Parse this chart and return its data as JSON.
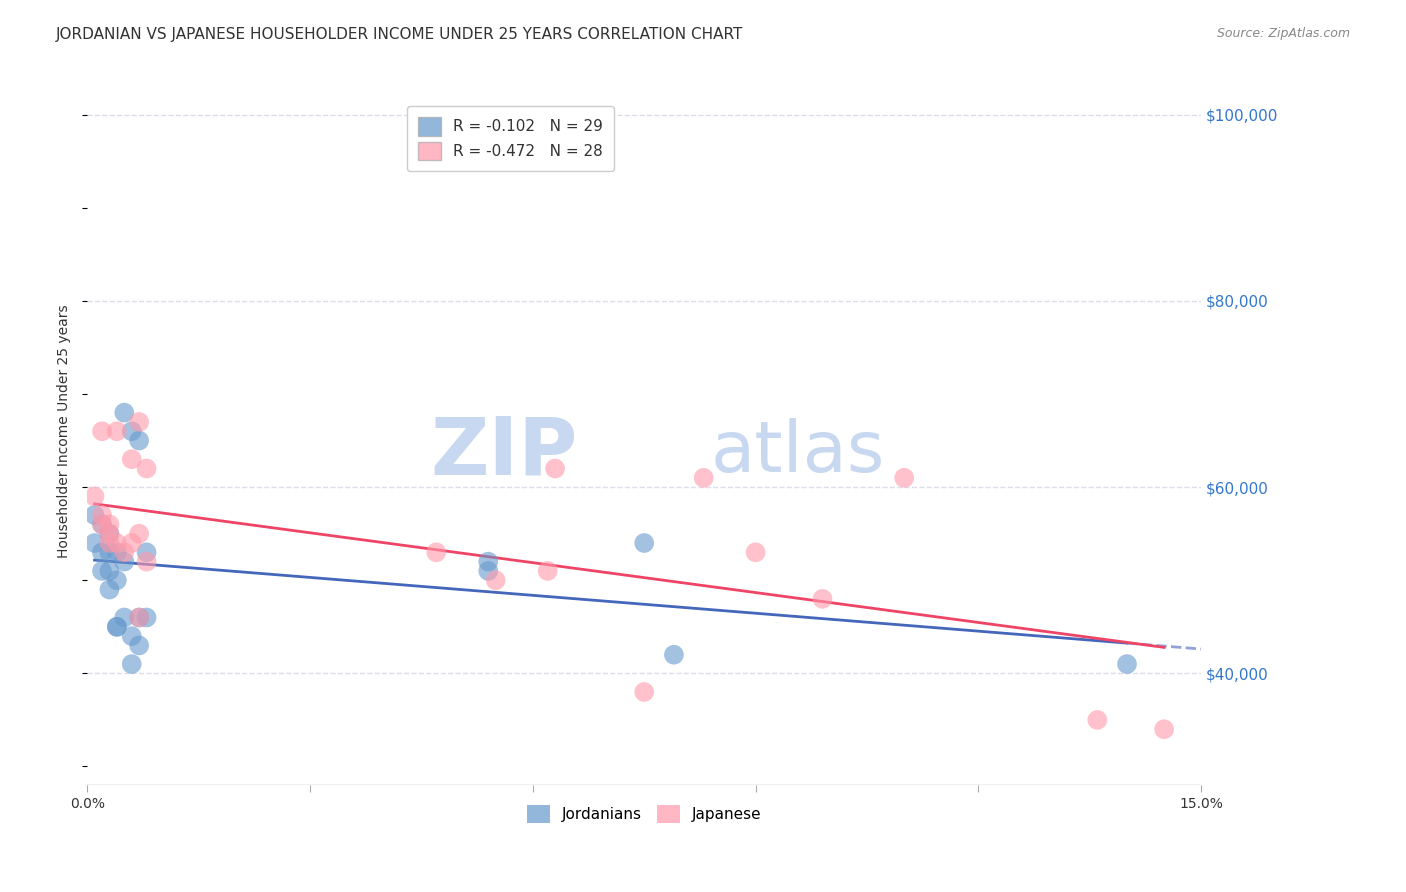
{
  "title": "JORDANIAN VS JAPANESE HOUSEHOLDER INCOME UNDER 25 YEARS CORRELATION CHART",
  "source": "Source: ZipAtlas.com",
  "ylabel": "Householder Income Under 25 years",
  "xlabel": "",
  "xlim": [
    0.0,
    0.15
  ],
  "ylim": [
    28000,
    104000
  ],
  "xticks": [
    0.0,
    0.03,
    0.06,
    0.09,
    0.12,
    0.15
  ],
  "xticklabels": [
    "0.0%",
    "",
    "",
    "",
    "",
    "15.0%"
  ],
  "yticks": [
    40000,
    60000,
    80000,
    100000
  ],
  "yticklabels": [
    "$40,000",
    "$60,000",
    "$80,000",
    "$100,000"
  ],
  "jordanians_x": [
    0.001,
    0.001,
    0.002,
    0.002,
    0.002,
    0.003,
    0.003,
    0.003,
    0.003,
    0.004,
    0.004,
    0.004,
    0.004,
    0.005,
    0.005,
    0.005,
    0.006,
    0.006,
    0.006,
    0.007,
    0.007,
    0.007,
    0.008,
    0.008,
    0.054,
    0.054,
    0.075,
    0.079,
    0.14
  ],
  "jordanians_y": [
    57000,
    54000,
    56000,
    53000,
    51000,
    55000,
    51000,
    53000,
    49000,
    53000,
    50000,
    45000,
    45000,
    68000,
    52000,
    46000,
    66000,
    44000,
    41000,
    65000,
    46000,
    43000,
    53000,
    46000,
    51000,
    52000,
    54000,
    42000,
    41000
  ],
  "japanese_x": [
    0.001,
    0.002,
    0.002,
    0.002,
    0.003,
    0.003,
    0.003,
    0.004,
    0.004,
    0.005,
    0.006,
    0.006,
    0.007,
    0.007,
    0.007,
    0.008,
    0.008,
    0.047,
    0.055,
    0.062,
    0.063,
    0.075,
    0.083,
    0.09,
    0.099,
    0.11,
    0.136,
    0.145
  ],
  "japanese_y": [
    59000,
    66000,
    57000,
    56000,
    56000,
    55000,
    54000,
    66000,
    54000,
    53000,
    63000,
    54000,
    67000,
    55000,
    46000,
    62000,
    52000,
    53000,
    50000,
    51000,
    62000,
    38000,
    61000,
    53000,
    48000,
    61000,
    35000,
    34000
  ],
  "jordanians_R": -0.102,
  "jordanians_N": 29,
  "japanese_R": -0.472,
  "japanese_N": 28,
  "blue_color": "#6699cc",
  "pink_color": "#ff99aa",
  "blue_line_color": "#4466bb",
  "pink_line_color": "#ee4466",
  "background_color": "#ffffff",
  "grid_color": "#ddddee",
  "title_fontsize": 11,
  "axis_label_fontsize": 10,
  "tick_fontsize": 10,
  "legend_fontsize": 11,
  "watermark_zip": "ZIP",
  "watermark_atlas": "atlas",
  "watermark_color": "#c8d8f0",
  "source_color": "#888888"
}
